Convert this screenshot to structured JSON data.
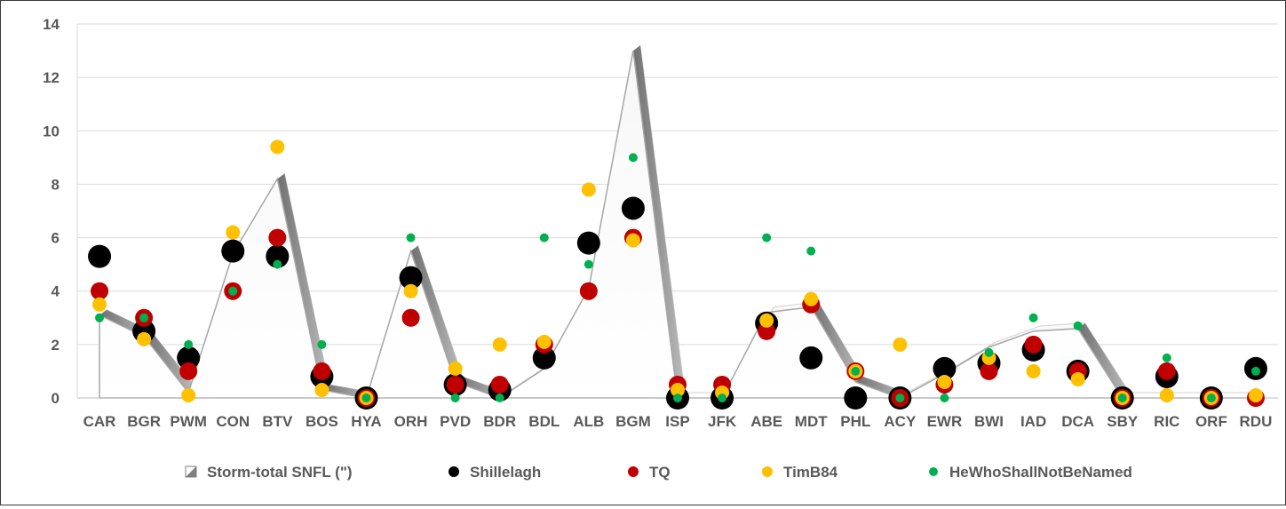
{
  "chart_data": {
    "type": "area",
    "title": "",
    "xlabel": "",
    "ylabel": "",
    "ylim": [
      0,
      14
    ],
    "yticks": [
      "0",
      "2",
      "4",
      "6",
      "8",
      "10",
      "12",
      "14"
    ],
    "grid": true,
    "legend_position": "bottom",
    "categories": [
      "CAR",
      "BGR",
      "PWM",
      "CON",
      "BTV",
      "BOS",
      "HYA",
      "ORH",
      "PVD",
      "BDR",
      "BDL",
      "ALB",
      "BGM",
      "ISP",
      "JFK",
      "ABE",
      "MDT",
      "PHL",
      "ACY",
      "EWR",
      "BWI",
      "IAD",
      "DCA",
      "SBY",
      "RIC",
      "ORF",
      "RDU"
    ],
    "series": [
      {
        "name": "Storm-total SNFL (\")",
        "kind": "area",
        "color": "#f2f2f2",
        "values": [
          3.1,
          2.3,
          0.2,
          5.4,
          8.2,
          0.3,
          0.0,
          5.5,
          0.6,
          0.0,
          1.1,
          4.1,
          13.0,
          0.0,
          0.0,
          3.2,
          3.4,
          0.6,
          0.0,
          0.9,
          1.9,
          2.5,
          2.6,
          0.0,
          0.0,
          0.0,
          0.0
        ]
      },
      {
        "name": "Shillelagh",
        "kind": "marker",
        "color": "#000000",
        "size": 13,
        "values": [
          5.3,
          2.5,
          1.5,
          5.5,
          5.3,
          0.8,
          0.0,
          4.5,
          0.5,
          0.3,
          1.5,
          5.8,
          7.1,
          0.0,
          0.0,
          2.8,
          1.5,
          0.0,
          0.0,
          1.1,
          1.3,
          1.8,
          1.0,
          0.0,
          0.8,
          0.0,
          1.1
        ]
      },
      {
        "name": "TQ",
        "kind": "marker",
        "color": "#c00000",
        "size": 10,
        "values": [
          4.0,
          3.0,
          1.0,
          4.0,
          6.0,
          1.0,
          0.0,
          3.0,
          0.5,
          0.5,
          2.0,
          4.0,
          6.0,
          0.5,
          0.5,
          2.5,
          3.5,
          1.0,
          0.0,
          0.5,
          1.0,
          2.0,
          1.0,
          0.0,
          1.0,
          0.0,
          0.0
        ]
      },
      {
        "name": "TimB84",
        "kind": "marker",
        "color": "#ffc000",
        "size": 8,
        "values": [
          3.5,
          2.2,
          0.1,
          6.2,
          9.4,
          0.3,
          0.0,
          4.0,
          1.1,
          2.0,
          2.1,
          7.8,
          5.9,
          0.3,
          0.2,
          2.9,
          3.7,
          1.0,
          2.0,
          0.6,
          1.5,
          1.0,
          0.7,
          0.0,
          0.1,
          0.0,
          0.1
        ]
      },
      {
        "name": "HeWhoShallNotBeNamed",
        "kind": "marker",
        "color": "#00b050",
        "size": 5,
        "values": [
          3.0,
          3.0,
          2.0,
          4.0,
          5.0,
          2.0,
          0.0,
          6.0,
          0.0,
          0.0,
          6.0,
          5.0,
          9.0,
          0.0,
          0.0,
          6.0,
          5.5,
          1.0,
          0.0,
          0.0,
          1.7,
          3.0,
          2.7,
          0.0,
          1.5,
          0.0,
          1.0
        ]
      }
    ]
  }
}
